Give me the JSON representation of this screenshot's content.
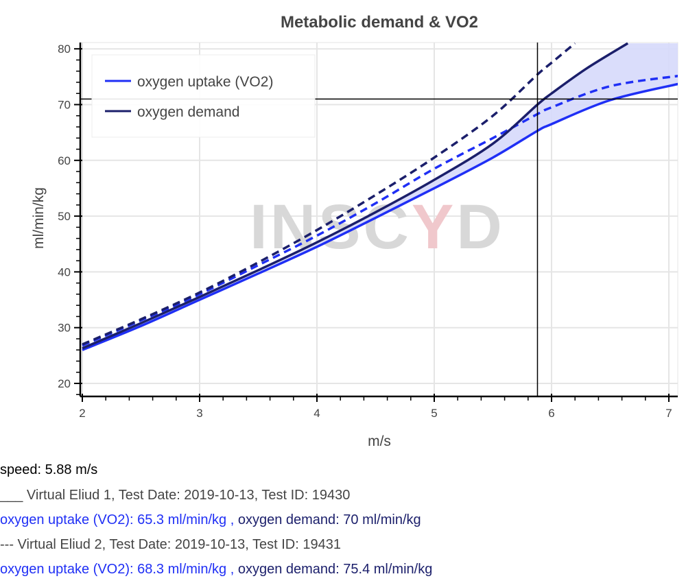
{
  "chart_data": {
    "type": "line",
    "title": "Metabolic demand & VO2",
    "xlabel": "m/s",
    "ylabel": "ml/min/kg",
    "xlim": [
      1.98,
      7.1
    ],
    "ylim": [
      18,
      81
    ],
    "xticks": [
      2,
      3,
      4,
      5,
      6,
      7
    ],
    "yticks": [
      20,
      30,
      40,
      50,
      60,
      70,
      80
    ],
    "grid": true,
    "legend_position": "top-left",
    "legend": [
      {
        "label": "oxygen uptake (VO2)",
        "color": "#1f2ff5"
      },
      {
        "label": "oxygen demand",
        "color": "#1b1f6b"
      }
    ],
    "crosshair": {
      "x": 5.88,
      "y": 71
    },
    "watermark": "INSCYD",
    "series": [
      {
        "name": "oxygen uptake (VO2)",
        "test": 1,
        "style": "solid",
        "color": "#1f2ff5",
        "x": [
          2,
          2.5,
          3,
          3.5,
          4,
          4.5,
          5,
          5.5,
          5.88,
          6,
          6.5,
          7.1
        ],
        "y": [
          26,
          30.3,
          35,
          39.7,
          44.5,
          49.7,
          55,
          60.5,
          65.3,
          66.5,
          70.8,
          73.8
        ]
      },
      {
        "name": "oxygen demand",
        "test": 1,
        "style": "solid",
        "color": "#1b1f6b",
        "x": [
          2,
          2.5,
          3,
          3.5,
          4,
          4.5,
          5,
          5.5,
          5.88,
          6,
          6.3,
          6.65
        ],
        "y": [
          26.3,
          30.8,
          35.5,
          40.3,
          45.3,
          50.7,
          56.5,
          63,
          70,
          72,
          76.5,
          81
        ]
      },
      {
        "name": "oxygen uptake (VO2)",
        "test": 2,
        "style": "dashed",
        "color": "#1f2ff5",
        "x": [
          2,
          2.5,
          3,
          3.5,
          4,
          4.5,
          5,
          5.5,
          5.88,
          6,
          6.5,
          7.1
        ],
        "y": [
          26.8,
          31.3,
          36,
          41.2,
          46.5,
          52.3,
          58.5,
          64,
          68.3,
          69.5,
          73.3,
          75.2
        ]
      },
      {
        "name": "oxygen demand",
        "test": 2,
        "style": "dashed",
        "color": "#1b1f6b",
        "x": [
          2,
          2.5,
          3,
          3.5,
          4,
          4.5,
          5,
          5.5,
          5.88,
          6,
          6.2
        ],
        "y": [
          27,
          31.5,
          36.3,
          41.7,
          47.5,
          53.8,
          60.5,
          68,
          75.4,
          77.5,
          81
        ]
      }
    ],
    "shaded_between": {
      "upper": "oxygen demand (test 1)",
      "lower": "oxygen uptake (VO2) (test 1)",
      "color": "#d6d9fb"
    }
  },
  "readout": {
    "speed": "speed: 5.88 m/s",
    "test1_header": "___ Virtual Eliud 1, Test Date: 2019-10-13, Test ID: 19430",
    "test1_vo2": "oxygen uptake (VO2): 65.3 ml/min/kg ,",
    "test1_demand": " oxygen demand: 70 ml/min/kg",
    "test2_header": "--- Virtual Eliud 2, Test Date: 2019-10-13, Test ID: 19431",
    "test2_vo2": "oxygen uptake (VO2): 68.3 ml/min/kg ,",
    "test2_demand": " oxygen demand: 75.4 ml/min/kg",
    "vo2_color": "#1f2ff5",
    "demand_color": "#1b1f6b"
  }
}
